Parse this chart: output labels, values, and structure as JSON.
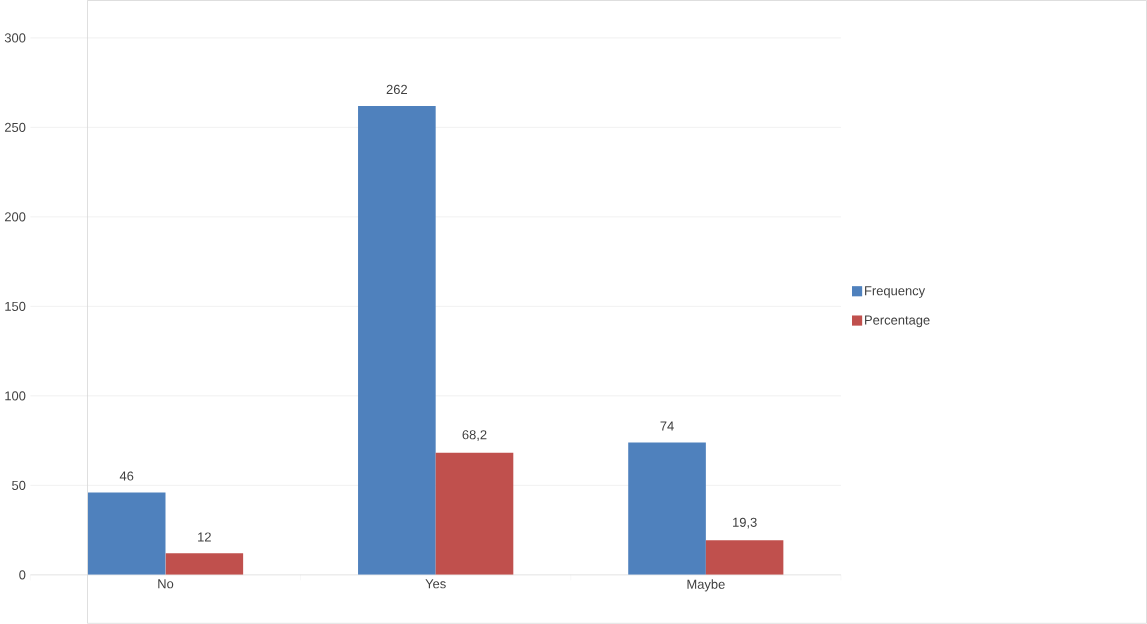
{
  "chart_data": {
    "type": "bar",
    "categories": [
      "No",
      "Yes",
      "Maybe"
    ],
    "series": [
      {
        "name": "Frequency",
        "color": "#4f81bd",
        "values": [
          46,
          262,
          74
        ],
        "value_labels": [
          "46",
          "262",
          "74"
        ]
      },
      {
        "name": "Percentage",
        "color": "#c0504d",
        "values": [
          12,
          68.2,
          19.3
        ],
        "value_labels": [
          "12",
          "68,2",
          "19,3"
        ]
      }
    ],
    "ylim": [
      0,
      300
    ],
    "yticks": [
      0,
      50,
      100,
      150,
      200,
      250,
      300
    ],
    "grid": "y",
    "legend": "right"
  }
}
